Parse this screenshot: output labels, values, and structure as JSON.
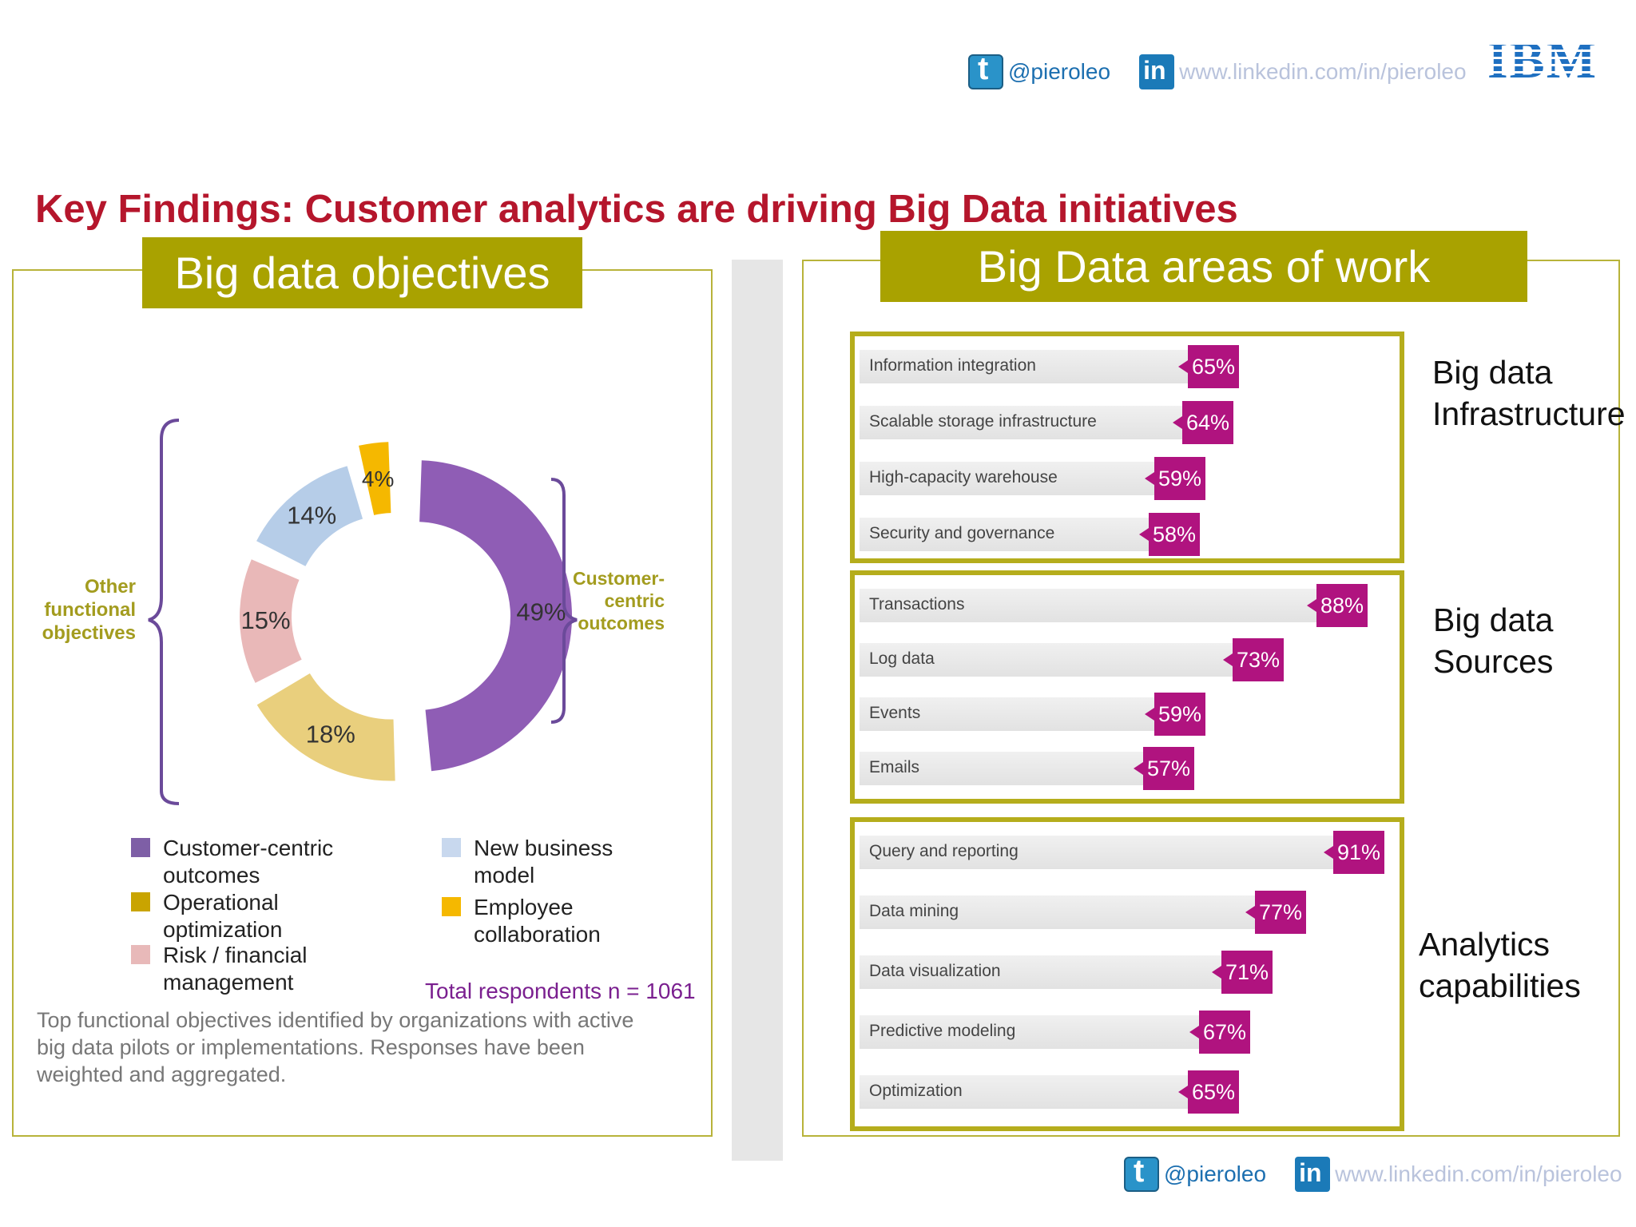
{
  "social_top": {
    "twitter": "@pieroleo",
    "linkedin": "www.linkedin.com/in/pieroleo",
    "logo": "IBM"
  },
  "social_bottom": {
    "twitter": "@pieroleo",
    "linkedin": "www.linkedin.com/in/pieroleo"
  },
  "title": "Key Findings: Customer analytics are driving Big Data initiatives",
  "left_panel": {
    "header": "Big data objectives",
    "bracket_left": [
      "Other",
      "functional",
      "objectives"
    ],
    "bracket_right": [
      "Customer-",
      "centric",
      "outcomes"
    ],
    "legend": [
      {
        "lines": [
          "Customer-centric",
          "outcomes"
        ],
        "color": "#7e5fa6"
      },
      {
        "lines": [
          "Operational",
          "optimization"
        ],
        "color": "#c9a400"
      },
      {
        "lines": [
          "Risk / financial",
          "management"
        ],
        "color": "#e8b9b9"
      },
      {
        "lines": [
          "New business",
          "model"
        ],
        "color": "#c8d8ee"
      },
      {
        "lines": [
          "Employee",
          "collaboration"
        ],
        "color": "#f5b800"
      }
    ],
    "total": "Total respondents n = 1061",
    "caption": "Top functional objectives identified by organizations with active big data pilots or implementations. Responses have been weighted and aggregated."
  },
  "right_panel": {
    "header": "Big Data areas of work"
  },
  "chart_data": [
    {
      "type": "pie",
      "labels": [
        "Customer-centric outcomes",
        "Operational optimization",
        "Risk / financial management",
        "New business model",
        "Employee collaboration"
      ],
      "values": [
        49,
        18,
        15,
        14,
        4
      ],
      "value_labels": [
        "49%",
        "18%",
        "15%",
        "14%",
        "4%"
      ],
      "colors": [
        "#8f5db5",
        "#e9cf7d",
        "#e9b8b8",
        "#b6cde8",
        "#f5b800"
      ]
    },
    {
      "type": "bar",
      "orientation": "horizontal",
      "groups": [
        {
          "name_lines": [
            "Big data",
            "Infrastructure"
          ],
          "categories": [
            "Information integration",
            "Scalable storage infrastructure",
            "High-capacity warehouse",
            "Security and governance"
          ],
          "values": [
            65,
            64,
            59,
            58
          ],
          "labels": [
            "65%",
            "64%",
            "59%",
            "58%"
          ]
        },
        {
          "name_lines": [
            "Big data",
            "Sources"
          ],
          "categories": [
            "Transactions",
            "Log data",
            "Events",
            "Emails"
          ],
          "values": [
            88,
            73,
            59,
            57
          ],
          "labels": [
            "88%",
            "73%",
            "59%",
            "57%"
          ]
        },
        {
          "name_lines": [
            "Analytics",
            "capabilities"
          ],
          "categories": [
            "Query and reporting",
            "Data mining",
            "Data visualization",
            "Predictive modeling",
            "Optimization"
          ],
          "values": [
            91,
            77,
            71,
            67,
            65
          ],
          "labels": [
            "91%",
            "77%",
            "71%",
            "67%",
            "65%"
          ]
        }
      ],
      "bar_color": "#b0137f"
    }
  ]
}
